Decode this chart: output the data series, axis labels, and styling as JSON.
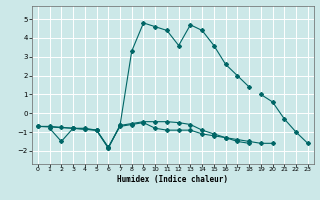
{
  "title": "",
  "xlabel": "Humidex (Indice chaleur)",
  "background_color": "#cce8e8",
  "line_color": "#006666",
  "grid_color": "#ffffff",
  "xlim": [
    -0.5,
    23.5
  ],
  "ylim": [
    -2.7,
    5.7
  ],
  "yticks": [
    -2,
    -1,
    0,
    1,
    2,
    3,
    4,
    5
  ],
  "xticks": [
    0,
    1,
    2,
    3,
    4,
    5,
    6,
    7,
    8,
    9,
    10,
    11,
    12,
    13,
    14,
    15,
    16,
    17,
    18,
    19,
    20,
    21,
    22,
    23
  ],
  "series": [
    [
      null,
      -0.8,
      -1.5,
      -0.8,
      -0.8,
      -0.9,
      -1.8,
      -0.7,
      -0.6,
      -0.5,
      -0.8,
      -0.9,
      -0.9,
      -0.9,
      -1.1,
      -1.2,
      -1.3,
      -1.4,
      -1.5,
      -1.6,
      -1.6,
      null,
      null,
      null
    ],
    [
      null,
      null,
      null,
      null,
      null,
      null,
      null,
      null,
      null,
      null,
      null,
      null,
      null,
      null,
      null,
      null,
      null,
      null,
      null,
      1.0,
      0.6,
      -0.3,
      -1.0,
      -1.6
    ],
    [
      -0.7,
      null,
      null,
      -0.8,
      -0.85,
      -0.9,
      -1.85,
      -0.65,
      3.3,
      4.8,
      4.6,
      4.4,
      3.6,
      4.7,
      4.4,
      3.6,
      2.6,
      2.0,
      1.4,
      null,
      null,
      null,
      null,
      null
    ],
    [
      -0.7,
      -0.7,
      -0.75,
      -0.8,
      -0.85,
      -0.9,
      -1.85,
      -0.65,
      -0.55,
      -0.45,
      -0.45,
      -0.45,
      -0.5,
      -0.6,
      -0.9,
      -1.1,
      -1.3,
      -1.5,
      -1.6,
      null,
      null,
      null,
      null,
      null
    ]
  ]
}
